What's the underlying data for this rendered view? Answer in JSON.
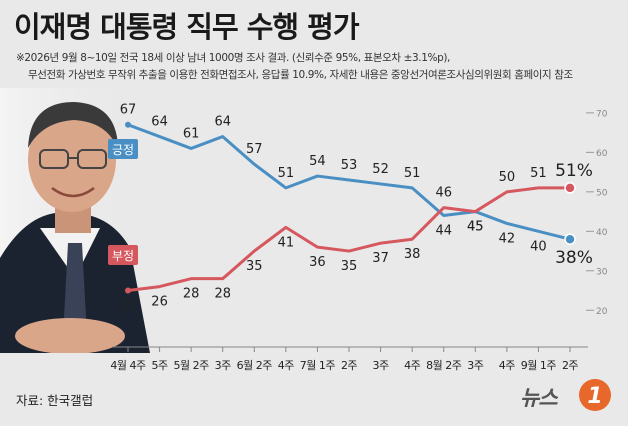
{
  "header": {
    "title": "이재명 대통령 직무 수행 평가",
    "note_line1": "※2026년 9월 8~10일 전국 18세 이상 남녀 1000명 조사 결과. (신뢰수준 95%, 표본오차 ±3.1%p),",
    "note_line2": "무선전화 가상번호 무작위 추출을 이용한 전화면접조사, 응답률 10.9%, 자세한 내용은 중앙선거여론조사심의위원회 홈페이지 참조"
  },
  "footer": {
    "source": "자료: 한국갤럽",
    "logo_text": "뉴스",
    "logo_badge": "1"
  },
  "colors": {
    "positive": "#4a8fc4",
    "negative": "#d6585f",
    "background": "#e9e9e9"
  },
  "chart_data": {
    "type": "line",
    "title": "이재명 대통령 직무 수행 평가",
    "categories": [
      "4월 4주",
      "5주",
      "5월 2주",
      "3주",
      "6월 2주",
      "4주",
      "7월 1주",
      "2주",
      "3주",
      "4주",
      "8월 2주",
      "3주",
      "4주",
      "9월 1주",
      "2주"
    ],
    "series": [
      {
        "name": "긍정",
        "color": "#4a8fc4",
        "values": [
          67,
          64,
          61,
          64,
          57,
          51,
          54,
          53,
          52,
          51,
          44,
          45,
          42,
          40,
          38
        ],
        "last_label": "38%"
      },
      {
        "name": "부정",
        "color": "#d6585f",
        "values": [
          25,
          26,
          28,
          28,
          35,
          41,
          36,
          35,
          37,
          38,
          46,
          45,
          50,
          51,
          51
        ],
        "last_label": "51%"
      }
    ],
    "y_ticks": [
      20,
      30,
      40,
      50,
      60,
      70
    ],
    "ylim": [
      15,
      72
    ],
    "grid": false,
    "legend": "inline"
  }
}
